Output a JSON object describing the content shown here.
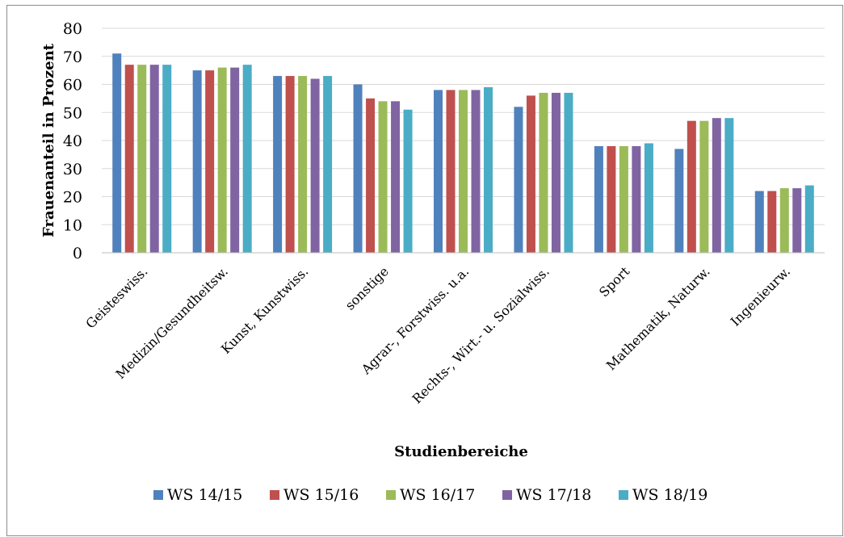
{
  "chart_data": {
    "type": "bar",
    "title": "",
    "xlabel": "Studienbereiche",
    "ylabel": "Frauenanteil in Prozent",
    "ylim": [
      0,
      80
    ],
    "yticks": [
      0,
      10,
      20,
      30,
      40,
      50,
      60,
      70,
      80
    ],
    "grid": true,
    "legend_position": "bottom",
    "categories": [
      "Geisteswiss.",
      "Medizin/Gesundheitsw.",
      "Kunst, Kunstwiss.",
      "sonstige",
      "Agrar-, Forstwiss. u.a.",
      "Rechts-, Wirt.- u. Sozialwiss.",
      "Sport",
      "Mathematik, Naturw.",
      "Ingenieurw."
    ],
    "series": [
      {
        "name": "WS 14/15",
        "color": "#4f81bd",
        "values": [
          71,
          65,
          63,
          60,
          58,
          52,
          38,
          37,
          22
        ]
      },
      {
        "name": "WS 15/16",
        "color": "#c0504d",
        "values": [
          67,
          65,
          63,
          55,
          58,
          56,
          38,
          47,
          22
        ]
      },
      {
        "name": "WS 16/17",
        "color": "#9bbb59",
        "values": [
          67,
          66,
          63,
          54,
          58,
          57,
          38,
          47,
          23
        ]
      },
      {
        "name": "WS 17/18",
        "color": "#8064a2",
        "values": [
          67,
          66,
          62,
          54,
          58,
          57,
          38,
          48,
          23
        ]
      },
      {
        "name": "WS 18/19",
        "color": "#4bacc6",
        "values": [
          67,
          67,
          63,
          51,
          59,
          57,
          39,
          48,
          24
        ]
      }
    ]
  }
}
